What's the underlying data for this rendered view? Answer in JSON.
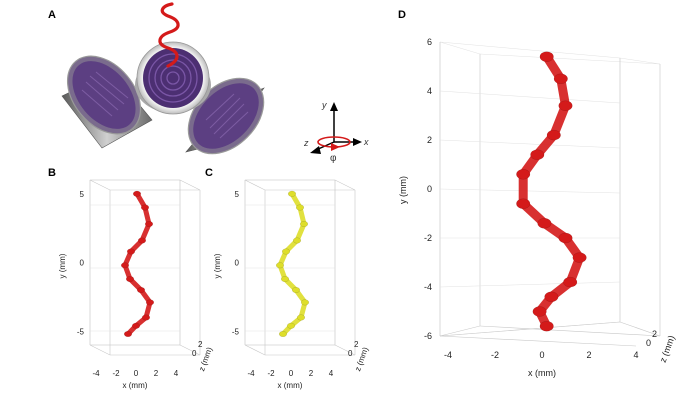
{
  "panels": {
    "a": {
      "letter": "A"
    },
    "b": {
      "letter": "B"
    },
    "c": {
      "letter": "C"
    },
    "d": {
      "letter": "D"
    }
  },
  "axes_icon": {
    "y": "y",
    "z": "z",
    "x": "x",
    "phi": "φ"
  },
  "colors": {
    "helix_red": "#d41a1a",
    "helix_yellow": "#dede2a",
    "mesh_purple": "#6a4b8c",
    "ring_gray": "#8a8a8a"
  },
  "chart_data": [
    {
      "panel": "B",
      "type": "scatter",
      "title": "",
      "xlabel": "x (mm)",
      "ylabel": "y (mm)",
      "zlabel": "z (mm)",
      "xlim": [
        -4,
        4
      ],
      "ylim": [
        -6,
        6
      ],
      "x_ticks": [
        "-4",
        "-2",
        "0",
        "2",
        "4"
      ],
      "y_ticks": [
        "5",
        "0",
        "-5"
      ],
      "z_ticks": [
        "0",
        "2"
      ],
      "grid": true,
      "series": [
        {
          "color": "red",
          "x": [
            0.1,
            0.9,
            1.3,
            0.6,
            -0.5,
            -1.1,
            -0.6,
            0.5,
            1.4,
            1.0,
            0.0,
            -0.8
          ],
          "y": [
            5.0,
            4.0,
            2.8,
            1.6,
            0.8,
            -0.2,
            -1.2,
            -2.0,
            -2.9,
            -4.0,
            -4.6,
            -5.2
          ]
        }
      ]
    },
    {
      "panel": "C",
      "type": "scatter",
      "title": "",
      "xlabel": "x (mm)",
      "ylabel": "y (mm)",
      "zlabel": "z (mm)",
      "xlim": [
        -4,
        4
      ],
      "ylim": [
        -6,
        6
      ],
      "x_ticks": [
        "-4",
        "-2",
        "0",
        "2",
        "4"
      ],
      "y_ticks": [
        "5",
        "0",
        "-5"
      ],
      "z_ticks": [
        "0",
        "2"
      ],
      "grid": true,
      "series": [
        {
          "color": "yellow",
          "x": [
            0.1,
            0.9,
            1.3,
            0.6,
            -0.5,
            -1.1,
            -0.6,
            0.5,
            1.4,
            1.0,
            0.0,
            -0.8
          ],
          "y": [
            5.0,
            4.0,
            2.8,
            1.6,
            0.8,
            -0.2,
            -1.2,
            -2.0,
            -2.9,
            -4.0,
            -4.6,
            -5.2
          ]
        }
      ]
    },
    {
      "panel": "D",
      "type": "scatter",
      "title": "",
      "xlabel": "x (mm)",
      "ylabel": "y (mm)",
      "zlabel": "z (mm)",
      "xlim": [
        -4,
        4
      ],
      "ylim": [
        -6,
        6
      ],
      "x_ticks": [
        "-4",
        "-2",
        "0",
        "2",
        "4"
      ],
      "y_ticks": [
        "6",
        "4",
        "2",
        "0",
        "-2",
        "-4",
        "-6"
      ],
      "z_ticks": [
        "0",
        "2"
      ],
      "grid": true,
      "series": [
        {
          "color": "red",
          "x": [
            0.2,
            0.8,
            1.0,
            0.5,
            -0.2,
            -0.8,
            -0.8,
            0.1,
            1.0,
            1.6,
            1.2,
            0.4,
            -0.1,
            0.2
          ],
          "y": [
            5.4,
            4.5,
            3.4,
            2.2,
            1.4,
            0.6,
            -0.6,
            -1.4,
            -2.0,
            -2.8,
            -3.8,
            -4.4,
            -5.0,
            -5.6
          ]
        }
      ]
    }
  ]
}
